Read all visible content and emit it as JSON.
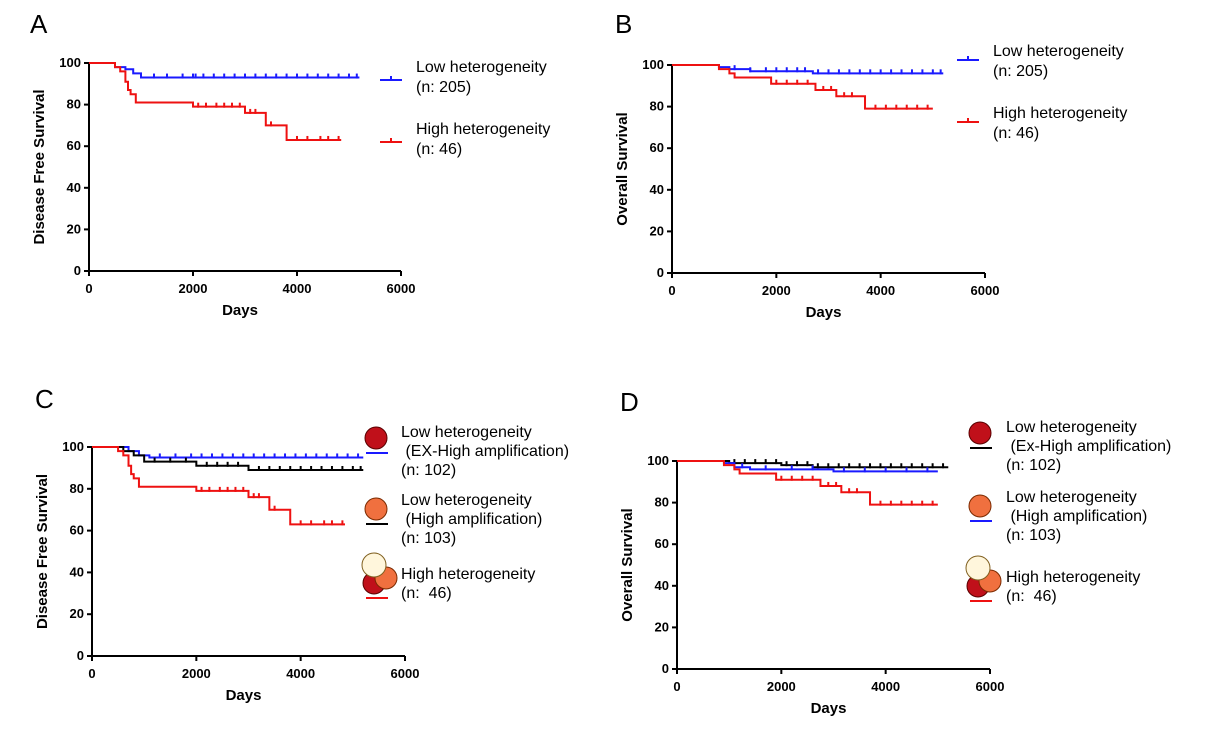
{
  "panels": [
    {
      "label": "A",
      "chart_data": {
        "type": "line",
        "subtype": "kaplan-meier",
        "xlabel": "Days",
        "ylabel": "Disease Free Survival",
        "xlim": [
          0,
          6000
        ],
        "ylim": [
          0,
          100
        ],
        "xticks": [
          0,
          2000,
          4000,
          6000
        ],
        "yticks": [
          0,
          20,
          40,
          60,
          80,
          100
        ],
        "series": [
          {
            "name": "Low heterogeneity",
            "n_label": "(n: 205)",
            "color": "#1a1aff",
            "steps": [
              [
                0,
                100
              ],
              [
                300,
                100
              ],
              [
                500,
                98
              ],
              [
                700,
                97
              ],
              [
                850,
                95
              ],
              [
                1000,
                93
              ],
              [
                5200,
                93
              ]
            ],
            "censor": [
              1250,
              1500,
              1800,
              2000,
              2050,
              2200,
              2400,
              2600,
              2800,
              3000,
              3200,
              3400,
              3600,
              3800,
              4000,
              4200,
              4400,
              4600,
              4800,
              5000,
              5150
            ],
            "censor_y_offset": -1
          },
          {
            "name": "High heterogeneity",
            "n_label": "(n: 46)",
            "color": "#ee1111",
            "steps": [
              [
                0,
                100
              ],
              [
                450,
                100
              ],
              [
                500,
                98
              ],
              [
                600,
                96
              ],
              [
                700,
                91
              ],
              [
                750,
                87
              ],
              [
                800,
                85
              ],
              [
                900,
                81
              ],
              [
                2000,
                81
              ],
              [
                2000,
                79
              ],
              [
                3000,
                79
              ],
              [
                3000,
                76
              ],
              [
                3400,
                76
              ],
              [
                3400,
                70
              ],
              [
                3800,
                70
              ],
              [
                3800,
                63
              ],
              [
                4850,
                63
              ]
            ],
            "censor": [
              2100,
              2250,
              2450,
              2600,
              2750,
              2900,
              3100,
              3200,
              3500,
              4000,
              4200,
              4450,
              4600,
              4800
            ]
          }
        ]
      }
    },
    {
      "label": "B",
      "chart_data": {
        "type": "line",
        "subtype": "kaplan-meier",
        "xlabel": "Days",
        "ylabel": "Overall Survival",
        "xlim": [
          0,
          6000
        ],
        "ylim": [
          0,
          100
        ],
        "xticks": [
          0,
          2000,
          4000,
          6000
        ],
        "yticks": [
          0,
          20,
          40,
          60,
          80,
          100
        ],
        "series": [
          {
            "name": "Low heterogeneity",
            "n_label": "(n: 205)",
            "color": "#1a1aff",
            "steps": [
              [
                0,
                100
              ],
              [
                700,
                100
              ],
              [
                900,
                99
              ],
              [
                1100,
                98
              ],
              [
                1500,
                97
              ],
              [
                2700,
                97
              ],
              [
                2700,
                96
              ],
              [
                5200,
                96
              ]
            ],
            "censor": [
              1200,
              1500,
              1800,
              2000,
              2200,
              2400,
              2550,
              2800,
              3000,
              3200,
              3400,
              3600,
              3800,
              4000,
              4200,
              4400,
              4600,
              4800,
              5000,
              5150
            ]
          },
          {
            "name": "High heterogeneity",
            "n_label": "(n: 46)",
            "color": "#ee1111",
            "steps": [
              [
                0,
                100
              ],
              [
                800,
                100
              ],
              [
                900,
                98
              ],
              [
                1100,
                96
              ],
              [
                1200,
                94
              ],
              [
                1900,
                94
              ],
              [
                1900,
                91
              ],
              [
                2750,
                91
              ],
              [
                2750,
                88
              ],
              [
                3150,
                88
              ],
              [
                3150,
                85
              ],
              [
                3700,
                85
              ],
              [
                3700,
                79
              ],
              [
                5000,
                79
              ]
            ],
            "censor": [
              2000,
              2200,
              2400,
              2600,
              2900,
              3050,
              3300,
              3450,
              3900,
              4100,
              4300,
              4500,
              4700,
              4900
            ]
          }
        ]
      }
    },
    {
      "label": "C",
      "chart_data": {
        "type": "line",
        "subtype": "kaplan-meier",
        "xlabel": "Days",
        "ylabel": "Disease Free Survival",
        "xlim": [
          0,
          6000
        ],
        "ylim": [
          0,
          100
        ],
        "xticks": [
          0,
          2000,
          4000,
          6000
        ],
        "yticks": [
          0,
          20,
          40,
          60,
          80,
          100
        ],
        "series": [
          {
            "name": "Low heterogeneity (EX-High amplification)",
            "legend_lines": [
              "Low heterogeneity",
              " (EX-High amplification)",
              "(n: 102)"
            ],
            "color": "#1a1aff",
            "legend_line_color": "#1a1aff",
            "steps": [
              [
                0,
                100
              ],
              [
                500,
                100
              ],
              [
                700,
                98
              ],
              [
                900,
                96
              ],
              [
                1100,
                95
              ],
              [
                5200,
                95
              ]
            ],
            "censor": [
              1300,
              1600,
              1900,
              2100,
              2300,
              2500,
              2700,
              2900,
              3100,
              3300,
              3500,
              3700,
              3900,
              4100,
              4300,
              4500,
              4700,
              4900,
              5100
            ]
          },
          {
            "name": "Low heterogeneity (High amplification)",
            "legend_lines": [
              "Low heterogeneity",
              " (High amplification)",
              "(n: 103)"
            ],
            "color": "#000000",
            "legend_line_color": "#000000",
            "steps": [
              [
                0,
                100
              ],
              [
                400,
                100
              ],
              [
                600,
                98
              ],
              [
                800,
                96
              ],
              [
                1000,
                93
              ],
              [
                2000,
                93
              ],
              [
                2000,
                91
              ],
              [
                3000,
                91
              ],
              [
                3000,
                89
              ],
              [
                5200,
                89
              ]
            ],
            "censor": [
              1200,
              1500,
              1800,
              2200,
              2400,
              2600,
              2800,
              3200,
              3400,
              3600,
              3800,
              4000,
              4200,
              4400,
              4600,
              4800,
              5000,
              5150
            ]
          },
          {
            "name": "High heterogeneity",
            "legend_lines": [
              "High heterogeneity",
              "(n:  46)"
            ],
            "color": "#ee1111",
            "legend_line_color": "#ee1111",
            "steps": [
              [
                0,
                100
              ],
              [
                450,
                100
              ],
              [
                500,
                98
              ],
              [
                600,
                96
              ],
              [
                700,
                91
              ],
              [
                750,
                87
              ],
              [
                800,
                85
              ],
              [
                900,
                81
              ],
              [
                2000,
                81
              ],
              [
                2000,
                79
              ],
              [
                3000,
                79
              ],
              [
                3000,
                76
              ],
              [
                3400,
                76
              ],
              [
                3400,
                70
              ],
              [
                3800,
                70
              ],
              [
                3800,
                63
              ],
              [
                4850,
                63
              ]
            ],
            "censor": [
              2100,
              2250,
              2450,
              2600,
              2750,
              2900,
              3100,
              3200,
              3500,
              4000,
              4200,
              4450,
              4600,
              4800
            ]
          }
        ]
      }
    },
    {
      "label": "D",
      "chart_data": {
        "type": "line",
        "subtype": "kaplan-meier",
        "xlabel": "Days",
        "ylabel": "Overall Survival",
        "xlim": [
          0,
          6000
        ],
        "ylim": [
          0,
          100
        ],
        "xticks": [
          0,
          2000,
          4000,
          6000
        ],
        "yticks": [
          0,
          20,
          40,
          60,
          80,
          100
        ],
        "series": [
          {
            "name": "Low heterogeneity (Ex-High amplification)",
            "legend_lines": [
              "Low heterogeneity",
              " (Ex-High amplification)",
              "(n: 102)"
            ],
            "color": "#000000",
            "legend_line_color": "#000000",
            "steps": [
              [
                0,
                100
              ],
              [
                800,
                100
              ],
              [
                1000,
                99
              ],
              [
                2000,
                99
              ],
              [
                2000,
                98
              ],
              [
                2600,
                98
              ],
              [
                2600,
                97
              ],
              [
                5200,
                97
              ]
            ],
            "censor": [
              1100,
              1300,
              1500,
              1700,
              1900,
              2100,
              2300,
              2500,
              2700,
              2900,
              3100,
              3300,
              3500,
              3700,
              3900,
              4100,
              4300,
              4500,
              4700,
              4900,
              5100
            ]
          },
          {
            "name": "Low heterogeneity (High amplification)",
            "legend_lines": [
              "Low heterogeneity",
              " (High amplification)",
              "(n: 103)"
            ],
            "color": "#1a1aff",
            "legend_line_color": "#1a1aff",
            "steps": [
              [
                0,
                100
              ],
              [
                700,
                100
              ],
              [
                900,
                99
              ],
              [
                1100,
                97
              ],
              [
                1400,
                96
              ],
              [
                3000,
                96
              ],
              [
                3000,
                95
              ],
              [
                5000,
                95
              ]
            ],
            "censor": [
              1250,
              1700,
              2200,
              2600,
              3200,
              3600,
              4000,
              4400,
              4800
            ]
          },
          {
            "name": "High heterogeneity",
            "legend_lines": [
              "High heterogeneity",
              "(n:  46)"
            ],
            "color": "#ee1111",
            "legend_line_color": "#ee1111",
            "steps": [
              [
                0,
                100
              ],
              [
                800,
                100
              ],
              [
                900,
                98
              ],
              [
                1100,
                96
              ],
              [
                1200,
                94
              ],
              [
                1900,
                94
              ],
              [
                1900,
                91
              ],
              [
                2750,
                91
              ],
              [
                2750,
                88
              ],
              [
                3150,
                88
              ],
              [
                3150,
                85
              ],
              [
                3700,
                85
              ],
              [
                3700,
                79
              ],
              [
                5000,
                79
              ]
            ],
            "censor": [
              2000,
              2200,
              2400,
              2600,
              2900,
              3050,
              3300,
              3450,
              3900,
              4100,
              4300,
              4500,
              4700,
              4900
            ]
          }
        ]
      }
    }
  ],
  "legend_icon_colors": {
    "dark_red": "#c0101a",
    "orange": "#f0703f",
    "cream": "#fff6dc"
  }
}
